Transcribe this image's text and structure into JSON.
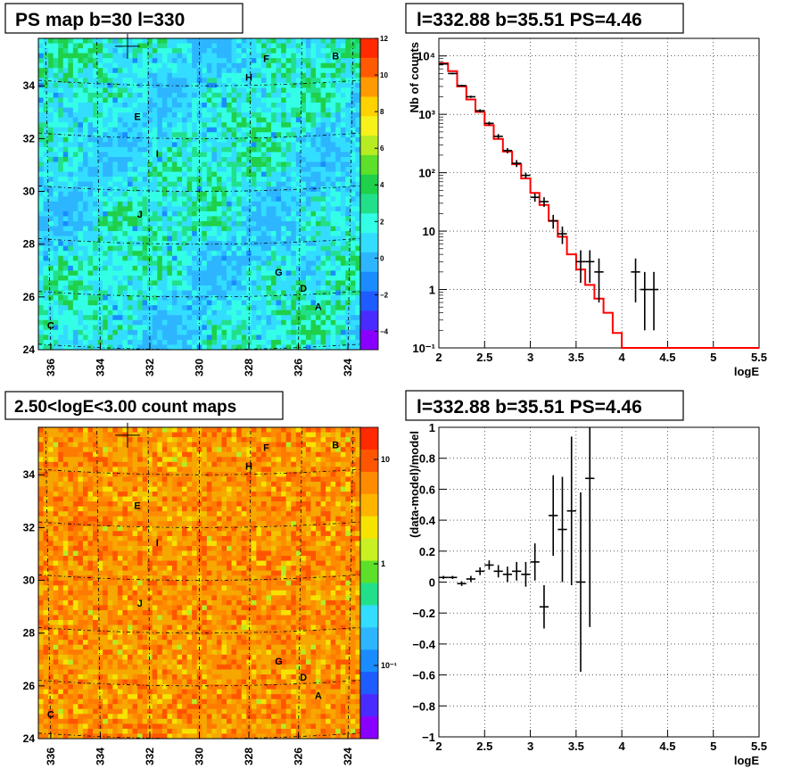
{
  "colors": {
    "frame": "#000000",
    "model_line": "#ff0000",
    "data_markers": "#000000",
    "grid": "#000000"
  },
  "panels": {
    "ps_map": {
      "title": "PS map b=30 l=330",
      "y_ticks": [
        "24",
        "26",
        "28",
        "30",
        "32",
        "34"
      ],
      "x_ticks": [
        "336",
        "334",
        "332",
        "330",
        "328",
        "326",
        "324"
      ],
      "colorbar_ticks": [
        "12",
        "10",
        "8",
        "6",
        "4",
        "2",
        "0",
        "−2",
        "−4"
      ],
      "source_labels": [
        "A",
        "B",
        "C",
        "D",
        "E",
        "F",
        "G",
        "H",
        "I",
        "J"
      ]
    },
    "counts_spectrum": {
      "title": "l=332.88 b=35.51 PS=4.46"
    },
    "count_map": {
      "title": "2.50<logE<3.00 count maps",
      "y_ticks": [
        "24",
        "26",
        "28",
        "30",
        "32",
        "34"
      ],
      "x_ticks": [
        "336",
        "334",
        "332",
        "330",
        "328",
        "326",
        "324"
      ],
      "colorbar_ticks": [
        "10",
        "1",
        "10⁻¹"
      ],
      "source_labels": [
        "A",
        "B",
        "C",
        "D",
        "E",
        "F",
        "G",
        "H",
        "I",
        "J"
      ]
    },
    "residuals": {
      "title": "l=332.88 b=35.51 PS=4.46"
    }
  },
  "chart_data": [
    {
      "type": "heatmap",
      "title": "PS map b=30 l=330",
      "xlabel": "",
      "ylabel": "",
      "xlim": [
        336.5,
        323.5
      ],
      "ylim": [
        24,
        35.8
      ],
      "colorbar_range": [
        -5,
        12
      ],
      "x_ticks": [
        336,
        334,
        332,
        330,
        328,
        326,
        324
      ],
      "y_ticks": [
        24,
        26,
        28,
        30,
        32,
        34
      ],
      "colorbar_ticks": [
        12,
        10,
        8,
        6,
        4,
        2,
        0,
        -2,
        -4
      ],
      "annotations": [
        {
          "text": "A",
          "x": 325.2,
          "y": 25.5
        },
        {
          "text": "B",
          "x": 324.5,
          "y": 35.0
        },
        {
          "text": "C",
          "x": 336.0,
          "y": 24.8
        },
        {
          "text": "D",
          "x": 325.8,
          "y": 26.2
        },
        {
          "text": "E",
          "x": 332.5,
          "y": 32.7
        },
        {
          "text": "F",
          "x": 327.3,
          "y": 34.9
        },
        {
          "text": "G",
          "x": 326.8,
          "y": 26.8
        },
        {
          "text": "H",
          "x": 328.0,
          "y": 34.2
        },
        {
          "text": "I",
          "x": 331.7,
          "y": 31.3
        },
        {
          "text": "J",
          "x": 332.4,
          "y": 29.0
        }
      ],
      "marker": {
        "type": "cross",
        "x": 332.9,
        "y": 35.5
      }
    },
    {
      "type": "line",
      "title": "l=332.88 b=35.51 PS=4.46",
      "xlabel": "logE",
      "ylabel": "Nb of counts",
      "xlim": [
        2,
        5.5
      ],
      "ylim": [
        0.1,
        20000
      ],
      "log_y": true,
      "grid": true,
      "x_ticks": [
        "2",
        "2.5",
        "3",
        "3.5",
        "4",
        "4.5",
        "5",
        "5.5"
      ],
      "y_ticks": [
        "10⁻¹",
        "1",
        "10",
        "10²",
        "10³",
        "10⁴"
      ],
      "series": [
        {
          "style": "step",
          "bin_edges": [
            2.0,
            2.1,
            2.2,
            2.3,
            2.4,
            2.5,
            2.6,
            2.7,
            2.8,
            2.9,
            3.0,
            3.1,
            3.2,
            3.3,
            3.4,
            3.5,
            3.6,
            3.7,
            3.8,
            3.9,
            4.0,
            4.1,
            4.2,
            4.3,
            4.4,
            4.5,
            4.6,
            4.7,
            4.8,
            4.9,
            5.0,
            5.1,
            5.2,
            5.3,
            5.4,
            5.5
          ],
          "values": [
            7500,
            5500,
            3000,
            1800,
            1100,
            650,
            380,
            230,
            140,
            80,
            45,
            28,
            15,
            8,
            4,
            2.2,
            1.2,
            0.7,
            0.4,
            0.18,
            0.1,
            0.1,
            0.1,
            0.1,
            0.1,
            0.1,
            0.1,
            0.1,
            0.1,
            0.1,
            0.1,
            0.1,
            0.1,
            0.1,
            0.1
          ]
        },
        {
          "style": "errorbar",
          "points": [
            {
              "x": 2.05,
              "y": 7300,
              "lo": 7100,
              "hi": 7500
            },
            {
              "x": 2.15,
              "y": 5000,
              "lo": 4850,
              "hi": 5150
            },
            {
              "x": 2.25,
              "y": 3100,
              "lo": 2990,
              "hi": 3210
            },
            {
              "x": 2.35,
              "y": 2000,
              "lo": 1910,
              "hi": 2090
            },
            {
              "x": 2.45,
              "y": 1150,
              "lo": 1080,
              "hi": 1220
            },
            {
              "x": 2.55,
              "y": 700,
              "lo": 650,
              "hi": 750
            },
            {
              "x": 2.65,
              "y": 420,
              "lo": 380,
              "hi": 460
            },
            {
              "x": 2.75,
              "y": 240,
              "lo": 215,
              "hi": 265
            },
            {
              "x": 2.85,
              "y": 145,
              "lo": 125,
              "hi": 165
            },
            {
              "x": 2.95,
              "y": 90,
              "lo": 80,
              "hi": 100
            },
            {
              "x": 3.05,
              "y": 38,
              "lo": 32,
              "hi": 44
            },
            {
              "x": 3.15,
              "y": 32,
              "lo": 26,
              "hi": 38
            },
            {
              "x": 3.25,
              "y": 15,
              "lo": 11,
              "hi": 19
            },
            {
              "x": 3.35,
              "y": 9,
              "lo": 6,
              "hi": 12
            },
            {
              "x": 3.55,
              "y": 3,
              "lo": 1.3,
              "hi": 4.7
            },
            {
              "x": 3.65,
              "y": 3,
              "lo": 1.3,
              "hi": 4.7
            },
            {
              "x": 3.75,
              "y": 2,
              "lo": 0.6,
              "hi": 3.4
            },
            {
              "x": 4.15,
              "y": 2,
              "lo": 0.6,
              "hi": 3.4
            },
            {
              "x": 4.25,
              "y": 1,
              "lo": 0.2,
              "hi": 2.0
            },
            {
              "x": 4.35,
              "y": 1,
              "lo": 0.2,
              "hi": 2.0
            }
          ]
        }
      ]
    },
    {
      "type": "heatmap",
      "title": "2.50<logE<3.00 count maps",
      "xlabel": "",
      "ylabel": "",
      "xlim": [
        336.5,
        323.5
      ],
      "ylim": [
        24,
        35.8
      ],
      "log_z": true,
      "colorbar_ticks": [
        "10",
        "1",
        "10⁻¹"
      ],
      "x_ticks": [
        336,
        334,
        332,
        330,
        328,
        326,
        324
      ],
      "y_ticks": [
        24,
        26,
        28,
        30,
        32,
        34
      ],
      "annotations": [
        {
          "text": "A",
          "x": 325.2,
          "y": 25.5
        },
        {
          "text": "B",
          "x": 324.5,
          "y": 35.0
        },
        {
          "text": "C",
          "x": 336.0,
          "y": 24.8
        },
        {
          "text": "D",
          "x": 325.8,
          "y": 26.2
        },
        {
          "text": "E",
          "x": 332.5,
          "y": 32.7
        },
        {
          "text": "F",
          "x": 327.3,
          "y": 34.9
        },
        {
          "text": "G",
          "x": 326.8,
          "y": 26.8
        },
        {
          "text": "H",
          "x": 328.0,
          "y": 34.2
        },
        {
          "text": "I",
          "x": 331.7,
          "y": 31.3
        },
        {
          "text": "J",
          "x": 332.4,
          "y": 29.0
        }
      ],
      "marker": {
        "type": "cross",
        "x": 332.9,
        "y": 35.5
      }
    },
    {
      "type": "scatter",
      "title": "l=332.88 b=35.51 PS=4.46",
      "xlabel": "logE",
      "ylabel": "(data-model)/model",
      "xlim": [
        2,
        5.5
      ],
      "ylim": [
        -1,
        1
      ],
      "grid": true,
      "x_ticks": [
        "2",
        "2.5",
        "3",
        "3.5",
        "4",
        "4.5",
        "5",
        "5.5"
      ],
      "y_ticks": [
        "−1",
        "−0.8",
        "−0.6",
        "−0.4",
        "−0.2",
        "0",
        "0.2",
        "0.4",
        "0.6",
        "0.8",
        "1"
      ],
      "series": [
        {
          "style": "errorbar",
          "points": [
            {
              "x": 2.05,
              "y": 0.03,
              "err": 0.01
            },
            {
              "x": 2.15,
              "y": 0.03,
              "err": 0.01
            },
            {
              "x": 2.25,
              "y": -0.01,
              "err": 0.015
            },
            {
              "x": 2.35,
              "y": 0.02,
              "err": 0.02
            },
            {
              "x": 2.45,
              "y": 0.07,
              "err": 0.025
            },
            {
              "x": 2.55,
              "y": 0.11,
              "err": 0.03
            },
            {
              "x": 2.65,
              "y": 0.07,
              "err": 0.04
            },
            {
              "x": 2.75,
              "y": 0.05,
              "err": 0.05
            },
            {
              "x": 2.85,
              "y": 0.07,
              "err": 0.06
            },
            {
              "x": 2.95,
              "y": 0.05,
              "err": 0.08
            },
            {
              "x": 3.05,
              "y": 0.13,
              "err": 0.12
            },
            {
              "x": 3.15,
              "y": -0.16,
              "err": 0.14
            },
            {
              "x": 3.25,
              "y": 0.43,
              "err": 0.26
            },
            {
              "x": 3.35,
              "y": 0.34,
              "err": 0.34
            },
            {
              "x": 3.45,
              "y": 0.46,
              "err": 0.48
            },
            {
              "x": 3.55,
              "y": 0.0,
              "err": 0.58
            },
            {
              "x": 3.65,
              "y": 0.67,
              "err": 0.96
            }
          ]
        }
      ]
    }
  ]
}
